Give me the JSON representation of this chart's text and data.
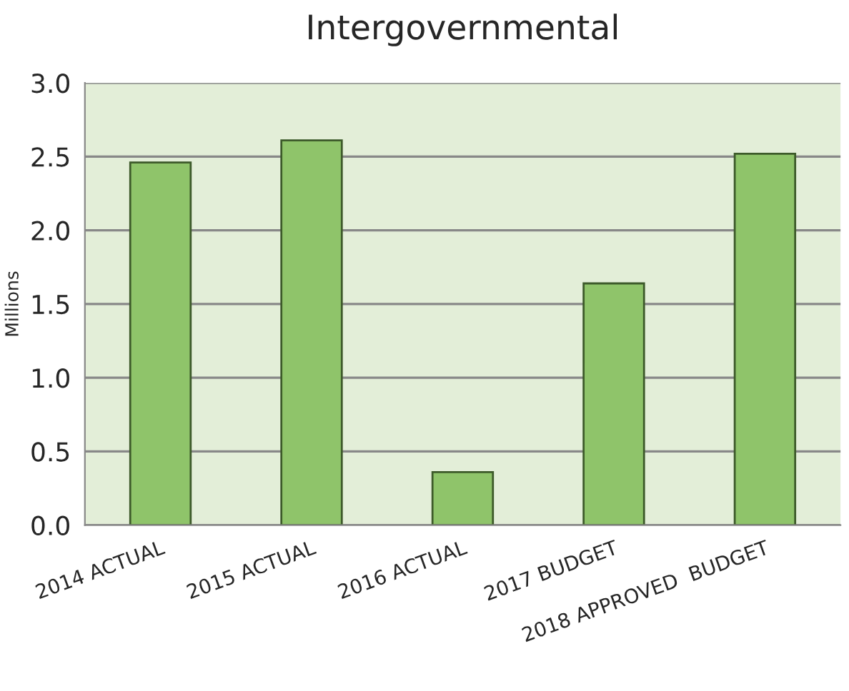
{
  "chart_data": {
    "type": "bar",
    "title": "Intergovernmental",
    "ylabel": "Millions",
    "categories": [
      "2014 ACTUAL",
      "2015 ACTUAL",
      "2016 ACTUAL",
      "2017 BUDGET",
      "2018 APPROVED  BUDGET"
    ],
    "values": [
      2.46,
      2.61,
      0.36,
      1.64,
      2.52
    ],
    "color": "#8fc46a",
    "ylim": [
      0,
      3
    ],
    "yticks": [
      {
        "value": 0,
        "label": "0.0"
      },
      {
        "value": 0.5,
        "label": "0.5"
      },
      {
        "value": 1,
        "label": "1.0"
      },
      {
        "value": 1.5,
        "label": "1.5"
      },
      {
        "value": 2,
        "label": "2.0"
      },
      {
        "value": 2.5,
        "label": "2.5"
      },
      {
        "value": 3,
        "label": "3.0"
      }
    ],
    "grid": "y"
  }
}
